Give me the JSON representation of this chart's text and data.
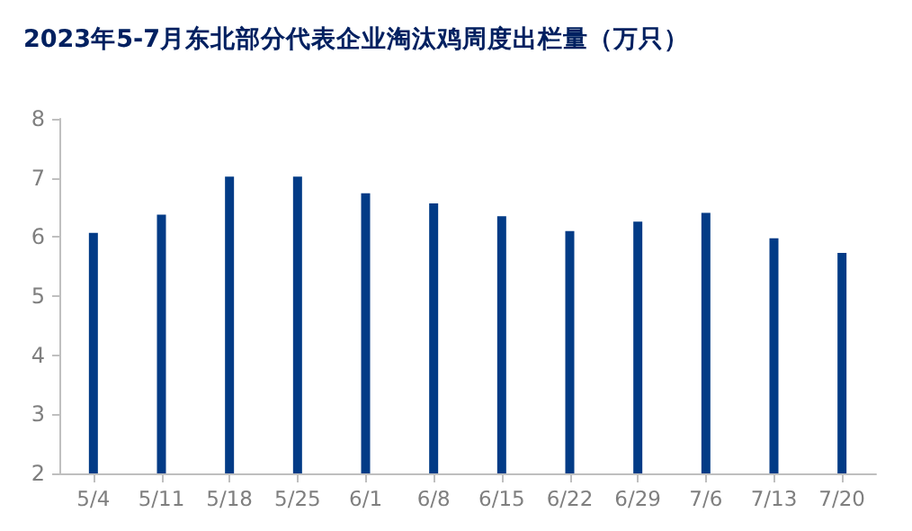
{
  "chart_data": {
    "type": "bar",
    "title": "2023年5-7月东北部分代表企业淘汰鸡周度出栏量（万只）",
    "categories": [
      "5/4",
      "5/11",
      "5/18",
      "5/25",
      "6/1",
      "6/8",
      "6/15",
      "6/22",
      "6/29",
      "7/6",
      "7/13",
      "7/20"
    ],
    "values": [
      6.07,
      6.38,
      7.02,
      7.02,
      6.74,
      6.57,
      6.35,
      6.1,
      6.26,
      6.41,
      5.98,
      5.73
    ],
    "color": "#023b86",
    "ylim": [
      2,
      8
    ],
    "yticks": [
      2,
      3,
      4,
      5,
      6,
      7,
      8
    ],
    "grid": false
  }
}
